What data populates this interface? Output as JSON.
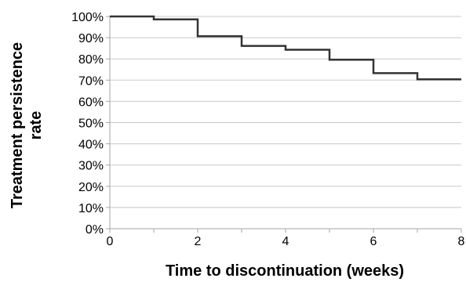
{
  "chart_data": {
    "type": "line",
    "line_style": "step",
    "title": "",
    "xlabel": "Time to discontinuation (weeks)",
    "ylabel_lines": [
      "Treatment persistence",
      "rate"
    ],
    "xlim": [
      0,
      8
    ],
    "ylim": [
      0,
      100
    ],
    "x_ticks": [
      0,
      2,
      4,
      6,
      8
    ],
    "y_ticks": [
      0,
      10,
      20,
      30,
      40,
      50,
      60,
      70,
      80,
      90,
      100
    ],
    "y_tick_suffix": "%",
    "grid": "horizontal",
    "series": [
      {
        "x": [
          0,
          1,
          2,
          3,
          4,
          5,
          6,
          7,
          8
        ],
        "values": [
          100,
          98.6,
          90.7,
          86.1,
          84.3,
          79.6,
          73.3,
          70.4,
          70.4
        ],
        "color": "#333333"
      }
    ]
  }
}
